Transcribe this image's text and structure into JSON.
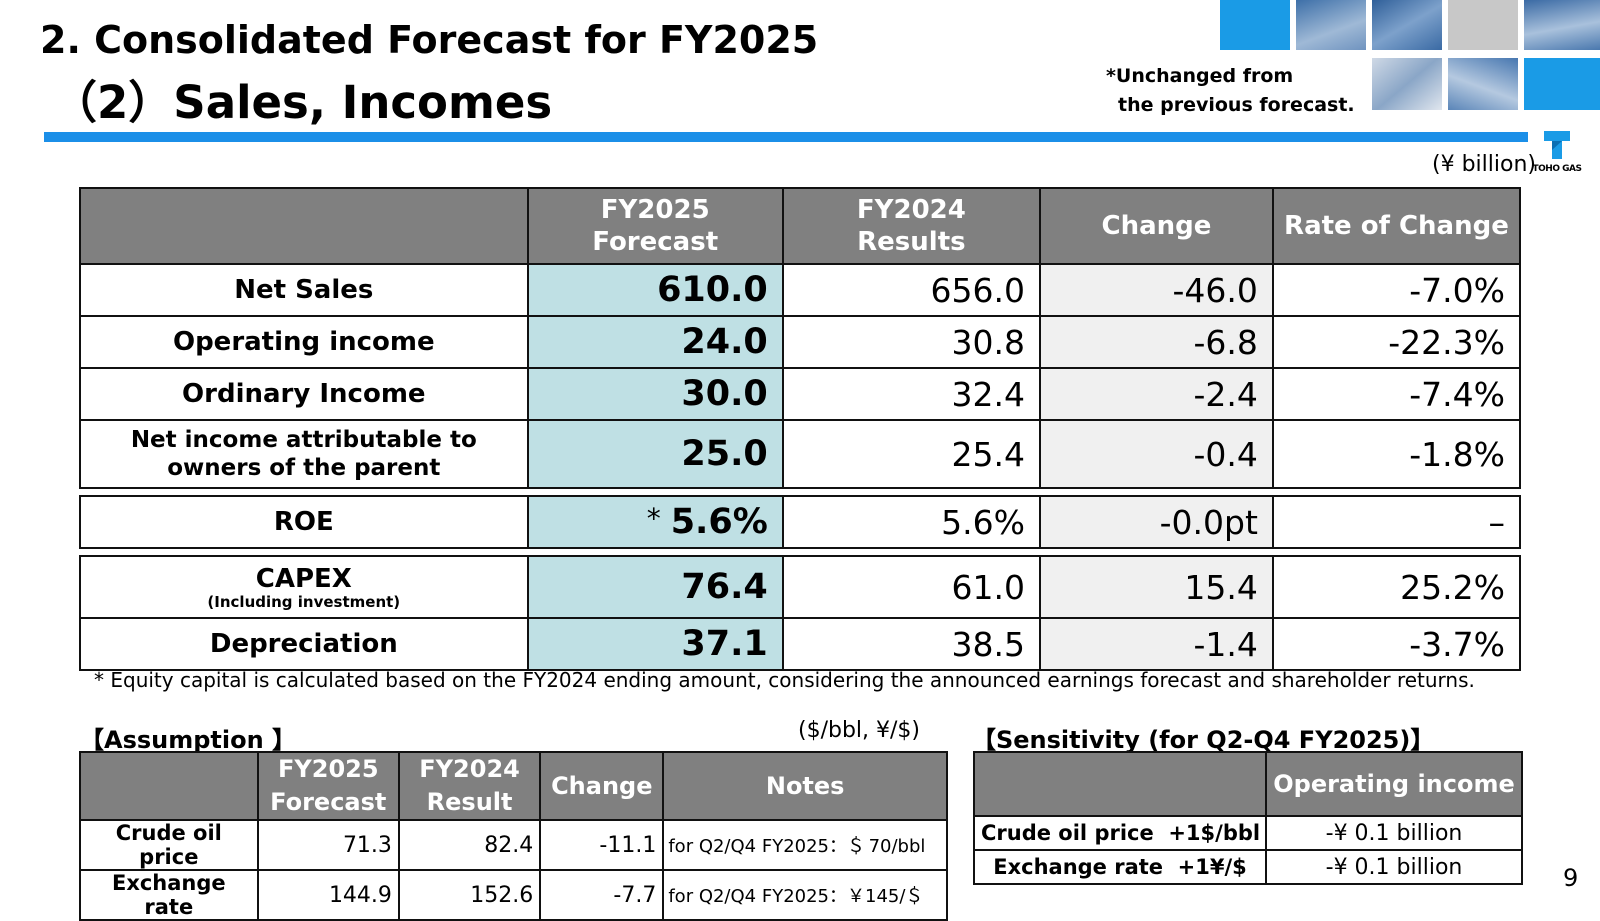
{
  "header": {
    "title_line1": "2.  Consolidated Forecast for FY2025",
    "title_line2": "（2）Sales, Incomes",
    "note_line1": "*Unchanged from",
    "note_line2": "the previous forecast.",
    "unit": "(¥ billion)"
  },
  "logo": {
    "text": "TOHO GAS",
    "accent_color": "#1a9be6"
  },
  "colors": {
    "rule": "#1b8fe8",
    "header_bg": "#808080",
    "forecast_bg": "#bfe0e4",
    "change_bg": "#f0f0f0"
  },
  "main_table": {
    "headers": {
      "c1_line1": "FY2025",
      "c1_line2": "Forecast",
      "c2_line1": "FY2024",
      "c2_line2": "Results",
      "c3": "Change",
      "c4": "Rate of Change"
    },
    "rows": [
      {
        "label": "Net Sales",
        "forecast": "610.0",
        "results": "656.0",
        "change": "-46.0",
        "rate": "-7.0%"
      },
      {
        "label": "Operating income",
        "forecast": "24.0",
        "results": "30.8",
        "change": "-6.8",
        "rate": "-22.3%"
      },
      {
        "label": "Ordinary Income",
        "forecast": "30.0",
        "results": "32.4",
        "change": "-2.4",
        "rate": "-7.4%"
      },
      {
        "label_line1": "Net income attributable to",
        "label_line2": "owners of the parent",
        "forecast": "25.0",
        "results": "25.4",
        "change": "-0.4",
        "rate": "-1.8%"
      },
      {
        "label": "ROE",
        "forecast_mark": "*",
        "forecast": "5.6%",
        "results": "5.6%",
        "change": "-0.0pt",
        "rate": "–"
      },
      {
        "label": "CAPEX",
        "sublabel": "(Including investment)",
        "forecast": "76.4",
        "results": "61.0",
        "change": "15.4",
        "rate": "25.2%"
      },
      {
        "label": "Depreciation",
        "forecast": "37.1",
        "results": "38.5",
        "change": "-1.4",
        "rate": "-3.7%"
      }
    ]
  },
  "footnote": "* Equity capital is calculated based on the FY2024 ending amount, considering the announced earnings forecast and shareholder returns.",
  "assumption": {
    "title": "【Assumption 】",
    "unit": "($/bbl, ¥/$)",
    "headers": {
      "c1_line1": "FY2025",
      "c1_line2": "Forecast",
      "c2_line1": "FY2024",
      "c2_line2": "Result",
      "c3": "Change",
      "c4": "Notes"
    },
    "rows": [
      {
        "label": "Crude oil price",
        "forecast": "71.3",
        "result": "82.4",
        "change": "-11.1",
        "notes": "for Q2/Q4 FY2025：＄ 70/bbl"
      },
      {
        "label": "Exchange rate",
        "forecast": "144.9",
        "result": "152.6",
        "change": "-7.7",
        "notes": "for Q2/Q4 FY2025：￥145/＄"
      }
    ]
  },
  "sensitivity": {
    "title": "【Sensitivity (for Q2-Q4 FY2025)】",
    "header": "Operating income",
    "rows": [
      {
        "label": "Crude oil price  +1$/bbl",
        "value": "-¥ 0.1 billion"
      },
      {
        "label": "Exchange rate  +1¥/$",
        "value": "-¥ 0.1 billion"
      }
    ]
  },
  "page_number": "9"
}
